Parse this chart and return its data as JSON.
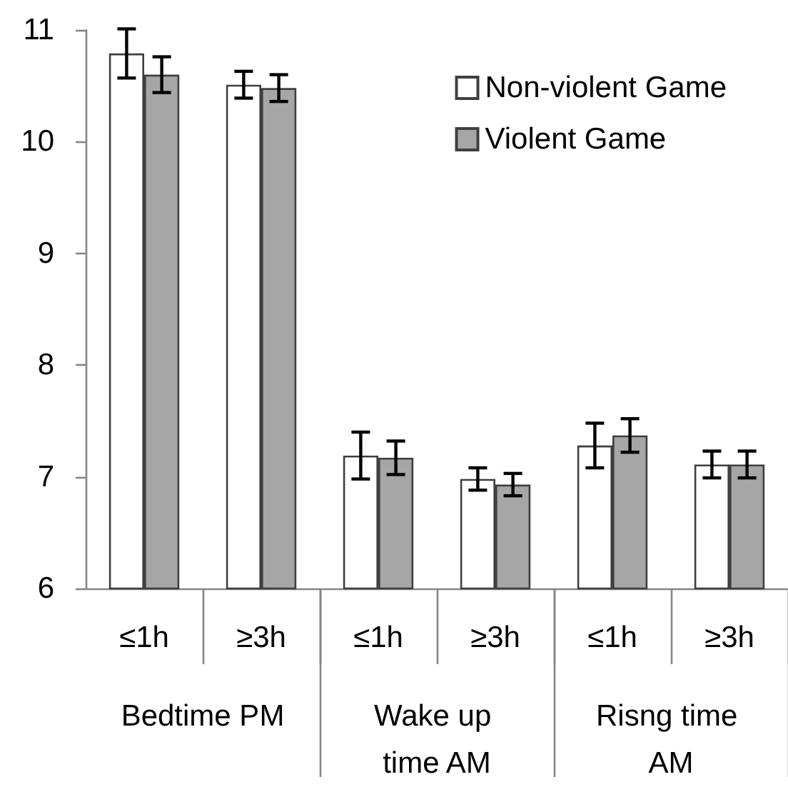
{
  "chart_data": {
    "type": "bar",
    "categories": [
      "≤1h",
      "≥3h",
      "≤1h",
      "≥3h",
      "≤1h",
      "≥3h"
    ],
    "annotations": [
      "Bedtime PM",
      "Wake up time AM",
      "Risng time AM"
    ],
    "series": [
      {
        "name": "Non-violent Game",
        "color": "#ffffff",
        "values": [
          10.79,
          10.51,
          7.19,
          6.98,
          7.28,
          7.11
        ],
        "errors": [
          0.22,
          0.12,
          0.21,
          0.1,
          0.2,
          0.12
        ]
      },
      {
        "name": "Violent Game",
        "color": "#a6a6a6",
        "values": [
          10.6,
          10.48,
          7.17,
          6.93,
          7.37,
          7.11
        ],
        "errors": [
          0.16,
          0.12,
          0.15,
          0.1,
          0.15,
          0.12
        ]
      }
    ],
    "ylim": [
      6,
      11
    ],
    "yticks": [
      6,
      7,
      8,
      9,
      10,
      11
    ],
    "legend": "top right"
  }
}
